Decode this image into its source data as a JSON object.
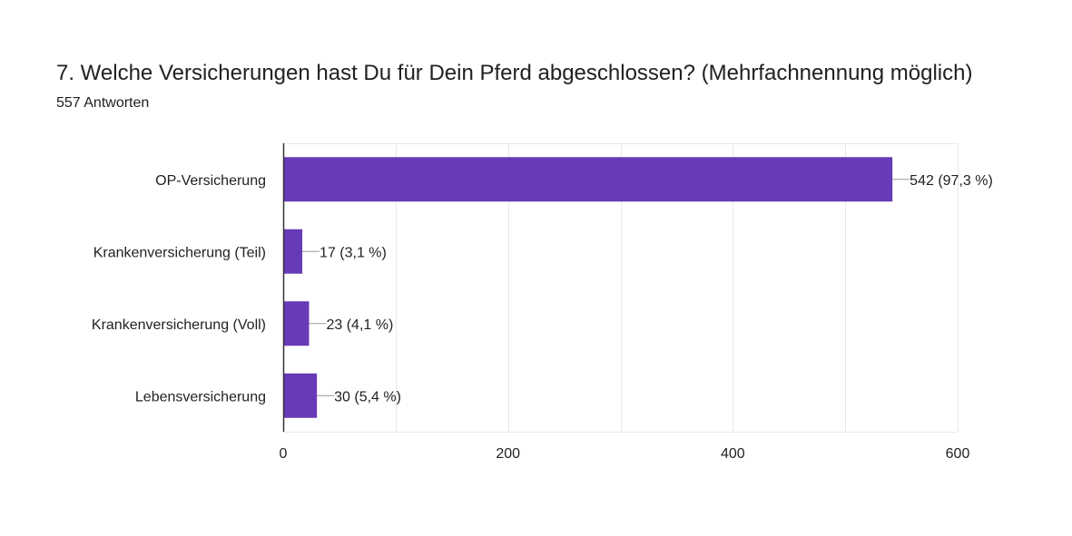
{
  "question": {
    "title": "7. Welche Versicherungen hast Du für Dein Pferd abgeschlossen? (Mehrfachnennung möglich)",
    "response_count": "557 Antworten"
  },
  "colors": {
    "bar": "#673ab7",
    "grid": "#e8e8e8",
    "axis": "#333333",
    "leader": "#999999",
    "text": "#222222"
  },
  "chart_data": {
    "type": "bar",
    "orientation": "horizontal",
    "title": "7. Welche Versicherungen hast Du für Dein Pferd abgeschlossen? (Mehrfachnennung möglich)",
    "xlabel": "",
    "ylabel": "",
    "categories": [
      "OP-Versicherung",
      "Krankenversicherung (Teil)",
      "Krankenversicherung (Voll)",
      "Lebensversicherung"
    ],
    "values": [
      542,
      17,
      23,
      30
    ],
    "data_labels": [
      "542 (97,3 %)",
      "17 (3,1 %)",
      "23 (4,1 %)",
      "30 (5,4 %)"
    ],
    "xlim": [
      0,
      600
    ],
    "ticks": [
      0,
      200,
      400,
      600
    ],
    "tick_labels": [
      "0",
      "200",
      "400",
      "600"
    ],
    "grid": true,
    "legend": "none"
  }
}
